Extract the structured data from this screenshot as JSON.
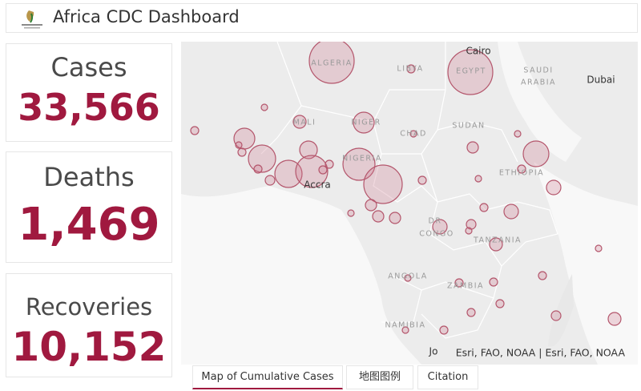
{
  "header": {
    "title": "Africa CDC Dashboard"
  },
  "stats": [
    {
      "label": "Cases",
      "value": "33,566"
    },
    {
      "label": "Deaths",
      "value": "1,469"
    },
    {
      "label": "Recoveries",
      "value": "10,152"
    }
  ],
  "map": {
    "labels": [
      "ALGERIA",
      "LIBYA",
      "EGYPT",
      "Cairo",
      "SAUDI",
      "ARABIA",
      "Dubai",
      "MALI",
      "NIGER",
      "CHAD",
      "SUDAN",
      "NIGERIA",
      "ETHIOPIA",
      "Accra",
      "DR",
      "CONGO",
      "TANZANIA",
      "ANGOLA",
      "ZAMBIA",
      "NAMIBIA",
      "Jo"
    ],
    "attribution": "Esri, FAO, NOAA | Esri, FAO, NOAA"
  },
  "tabs": [
    "Map of Cumulative Cases",
    "地图图例",
    "Citation"
  ]
}
